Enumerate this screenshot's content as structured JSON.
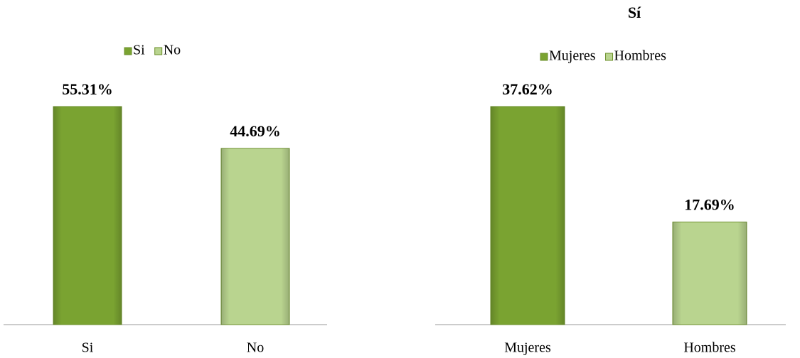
{
  "chart_data": [
    {
      "type": "bar",
      "categories": [
        "Si",
        "No"
      ],
      "values": [
        55.31,
        44.69
      ],
      "value_labels": [
        "55.31%",
        "44.69%"
      ],
      "colors": [
        "#7aa331",
        "#b9d48f"
      ],
      "legend": true
    },
    {
      "type": "bar",
      "title": "Sí",
      "categories": [
        "Mujeres",
        "Hombres"
      ],
      "values": [
        37.62,
        17.69
      ],
      "value_labels": [
        "37.62%",
        "17.69%"
      ],
      "colors": [
        "#7aa331",
        "#b9d48f"
      ],
      "legend": true
    }
  ]
}
